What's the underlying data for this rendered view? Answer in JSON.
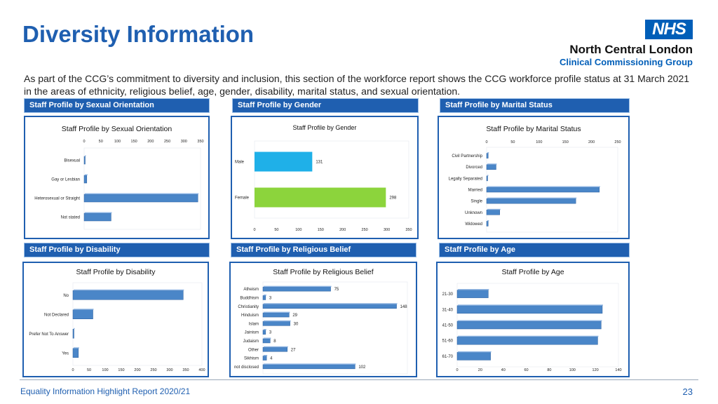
{
  "header": {
    "title": "Diversity Information",
    "intro": "As part of the CCG’s commitment to diversity and inclusion, this section of the workforce report shows the CCG workforce profile status at 31 March 2021 in the areas of ethnicity, religious belief, age, gender, disability,  marital status, and sexual orientation."
  },
  "logo": {
    "badge": "NHS",
    "org_name": "North Central London",
    "org_sub": "Clinical Commissioning Group"
  },
  "sections": [
    "Staff Profile by Sexual Orientation",
    "Staff Profile by Gender",
    "Staff Profile by Marital Status",
    "Staff Profile by Disability",
    "Staff Profile by Religious Belief",
    "Staff Profile by Age"
  ],
  "footer": {
    "text": "Equality Information Highlight Report 2020/21",
    "page": "23"
  },
  "colors": {
    "brand": "#1f5fb0",
    "bar_blue": "#4a86c8",
    "bar_cyan": "#1fb0e8",
    "bar_green": "#8cd43c"
  },
  "chart_data": [
    {
      "type": "bar",
      "orientation": "horizontal",
      "title": "Staff Profile by Sexual Orientation",
      "categories": [
        "Bisexual",
        "Gay or Lesbian",
        "Heterosexual or Straight",
        "Not stated"
      ],
      "values": [
        3,
        8,
        342,
        81
      ],
      "xlim": [
        0,
        350
      ],
      "ticks": [
        "0",
        "50",
        "100",
        "150",
        "200",
        "250",
        "300",
        "350"
      ],
      "tick_values": [
        0,
        50,
        100,
        150,
        200,
        250,
        300,
        350
      ],
      "axis_position": "top",
      "data_labels": false,
      "color": "#4a86c8"
    },
    {
      "type": "bar",
      "orientation": "horizontal",
      "title": "Staff Profile by Gender",
      "categories": [
        "Male",
        "Female"
      ],
      "values": [
        131,
        298
      ],
      "value_labels": [
        "131",
        "298"
      ],
      "xlim": [
        0,
        350
      ],
      "ticks": [
        "0",
        "50",
        "100",
        "150",
        "200",
        "250",
        "300",
        "350"
      ],
      "tick_values": [
        0,
        50,
        100,
        150,
        200,
        250,
        300,
        350
      ],
      "axis_position": "bottom",
      "data_labels": true,
      "colors": [
        "#1fb0e8",
        "#8cd43c"
      ]
    },
    {
      "type": "bar",
      "orientation": "horizontal",
      "title": "Staff Profile by Marital Status",
      "categories": [
        "Civil Partnership",
        "Divorced",
        "Legally Separated",
        "Married",
        "Single",
        "Unknown",
        "Widowed"
      ],
      "values": [
        3,
        18,
        2,
        215,
        170,
        25,
        3
      ],
      "xlim": [
        0,
        250
      ],
      "ticks": [
        "0",
        "50",
        "100",
        "150",
        "200",
        "250"
      ],
      "tick_values": [
        0,
        50,
        100,
        150,
        200,
        250
      ],
      "axis_position": "top",
      "data_labels": false,
      "color": "#4a86c8"
    },
    {
      "type": "bar",
      "orientation": "horizontal",
      "title": "Staff Profile by Disability",
      "categories": [
        "No",
        "Not Declared",
        "Prefer Not To Answer",
        "Yes"
      ],
      "values": [
        342,
        62,
        3,
        17
      ],
      "xlim": [
        0,
        400
      ],
      "ticks": [
        "0",
        "50",
        "100",
        "150",
        "200",
        "250",
        "300",
        "350",
        "400"
      ],
      "tick_values": [
        0,
        50,
        100,
        150,
        200,
        250,
        300,
        350,
        400
      ],
      "axis_position": "bottom",
      "data_labels": false,
      "color": "#4a86c8"
    },
    {
      "type": "bar",
      "orientation": "horizontal",
      "title": "Staff Profile by Religious Belief",
      "categories": [
        "Atheism",
        "Buddhism",
        "Christianity",
        "Hinduism",
        "Islam",
        "Jainism",
        "Judaism",
        "Other",
        "Sikhism",
        "not disclosed"
      ],
      "values": [
        75,
        3,
        148,
        29,
        30,
        3,
        8,
        27,
        4,
        102
      ],
      "value_labels": [
        "75",
        "3",
        "148",
        "29",
        "30",
        "3",
        "8",
        "27",
        "4",
        "102"
      ],
      "xlim": [
        0,
        160
      ],
      "ticks": [],
      "tick_values": [],
      "axis_position": "none",
      "data_labels": true,
      "color": "#4a86c8"
    },
    {
      "type": "bar",
      "orientation": "horizontal",
      "title": "Staff Profile by Age",
      "categories": [
        "21-30",
        "31-40",
        "41-50",
        "51-60",
        "61-70"
      ],
      "values": [
        27,
        126,
        125,
        122,
        29
      ],
      "xlim": [
        0,
        140
      ],
      "ticks": [
        "0",
        "20",
        "40",
        "60",
        "80",
        "100",
        "120",
        "140"
      ],
      "tick_values": [
        0,
        20,
        40,
        60,
        80,
        100,
        120,
        140
      ],
      "axis_position": "bottom",
      "data_labels": false,
      "color": "#4a86c8"
    }
  ]
}
